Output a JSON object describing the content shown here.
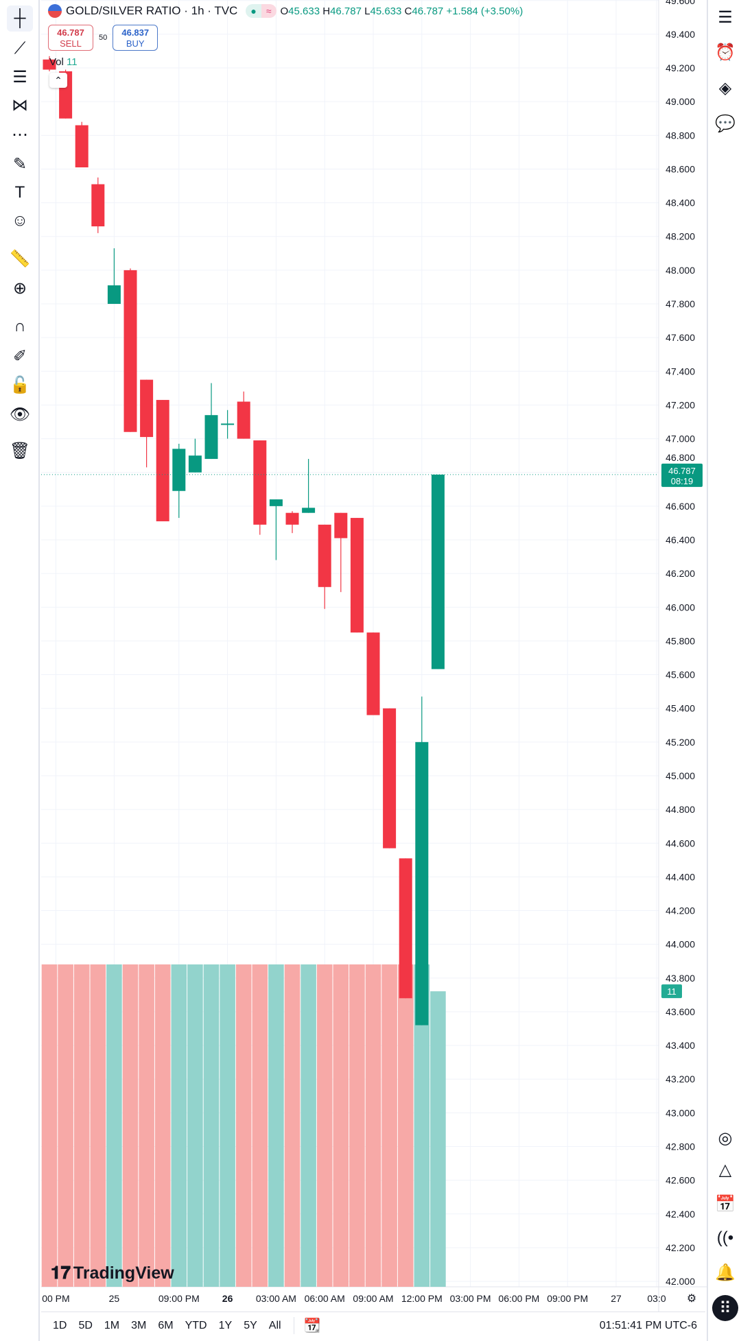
{
  "header": {
    "symbol": "GOLD/SILVER RATIO · 1h · TVC",
    "flag_icon": "us-flag-icon",
    "ohlc": [
      {
        "k": "O",
        "v": "45.633"
      },
      {
        "k": "H",
        "v": "46.787"
      },
      {
        "k": "L",
        "v": "45.633"
      },
      {
        "k": "C",
        "v": "46.787"
      }
    ],
    "change": "+1.584 (+3.50%)"
  },
  "trade": {
    "sell_price": "46.787",
    "sell_label": "SELL",
    "spread": "50",
    "buy_price": "46.837",
    "buy_label": "BUY"
  },
  "volume_legend": {
    "label": "Vol",
    "value": "11"
  },
  "colors": {
    "up": "#089981",
    "down": "#f23645",
    "vol_up": "#92d3cc",
    "vol_down": "#f7a9a7"
  },
  "price_axis": [
    "49.600",
    "49.400",
    "49.200",
    "49.000",
    "48.800",
    "48.600",
    "48.400",
    "48.200",
    "48.000",
    "47.800",
    "47.600",
    "47.400",
    "47.200",
    "47.000",
    "46.800",
    "46.600",
    "46.400",
    "46.200",
    "46.000",
    "45.800",
    "45.600",
    "45.400",
    "45.200",
    "45.000",
    "44.800",
    "44.600",
    "44.400",
    "44.200",
    "44.000",
    "43.800",
    "43.600",
    "43.400",
    "43.200",
    "43.000",
    "42.800",
    "42.600",
    "42.400",
    "42.200",
    "42.000"
  ],
  "last_price_tag": {
    "price": "46.787",
    "countdown": "08:19"
  },
  "volume_tag": "11",
  "time_axis": [
    {
      "label": "00 PM",
      "bold": false,
      "i": 0.4
    },
    {
      "label": "25",
      "bold": false,
      "i": 4
    },
    {
      "label": "09:00 PM",
      "bold": false,
      "i": 8
    },
    {
      "label": "26",
      "bold": true,
      "i": 11
    },
    {
      "label": "03:00 AM",
      "bold": false,
      "i": 14
    },
    {
      "label": "06:00 AM",
      "bold": false,
      "i": 17
    },
    {
      "label": "09:00 AM",
      "bold": false,
      "i": 20
    },
    {
      "label": "12:00 PM",
      "bold": false,
      "i": 23
    },
    {
      "label": "03:00 PM",
      "bold": false,
      "i": 26
    },
    {
      "label": "06:00 PM",
      "bold": false,
      "i": 29
    },
    {
      "label": "09:00 PM",
      "bold": false,
      "i": 32
    },
    {
      "label": "27",
      "bold": false,
      "i": 35
    },
    {
      "label": "03:0",
      "bold": false,
      "i": 37.5
    }
  ],
  "chart_data": {
    "type": "candlestick",
    "ylim": [
      42.0,
      49.6
    ],
    "candles": [
      {
        "o": 49.25,
        "h": 49.27,
        "l": 49.18,
        "c": 49.19,
        "v": 12
      },
      {
        "o": 49.18,
        "h": 49.19,
        "l": 48.9,
        "c": 48.9,
        "v": 12
      },
      {
        "o": 48.86,
        "h": 48.88,
        "l": 48.61,
        "c": 48.61,
        "v": 12
      },
      {
        "o": 48.51,
        "h": 48.55,
        "l": 48.22,
        "c": 48.26,
        "v": 12
      },
      {
        "o": 47.8,
        "h": 48.13,
        "l": 47.8,
        "c": 47.91,
        "v": 12
      },
      {
        "o": 48.0,
        "h": 48.01,
        "l": 47.04,
        "c": 47.04,
        "v": 12
      },
      {
        "o": 47.35,
        "h": 47.35,
        "l": 46.83,
        "c": 47.01,
        "v": 12
      },
      {
        "o": 47.23,
        "h": 47.23,
        "l": 46.51,
        "c": 46.51,
        "v": 12
      },
      {
        "o": 46.69,
        "h": 46.97,
        "l": 46.53,
        "c": 46.94,
        "v": 12
      },
      {
        "o": 46.8,
        "h": 47.0,
        "l": 46.8,
        "c": 46.9,
        "v": 12
      },
      {
        "o": 46.88,
        "h": 47.33,
        "l": 46.88,
        "c": 47.14,
        "v": 12
      },
      {
        "o": 47.09,
        "h": 47.17,
        "l": 47.0,
        "c": 47.09,
        "v": 12
      },
      {
        "o": 47.22,
        "h": 47.28,
        "l": 47.0,
        "c": 47.0,
        "v": 12
      },
      {
        "o": 46.99,
        "h": 46.99,
        "l": 46.43,
        "c": 46.49,
        "v": 12
      },
      {
        "o": 46.6,
        "h": 46.64,
        "l": 46.28,
        "c": 46.64,
        "v": 12
      },
      {
        "o": 46.56,
        "h": 46.57,
        "l": 46.44,
        "c": 46.49,
        "v": 12
      },
      {
        "o": 46.56,
        "h": 46.88,
        "l": 46.56,
        "c": 46.59,
        "v": 12
      },
      {
        "o": 46.49,
        "h": 46.49,
        "l": 45.99,
        "c": 46.12,
        "v": 12
      },
      {
        "o": 46.56,
        "h": 46.56,
        "l": 46.09,
        "c": 46.41,
        "v": 12
      },
      {
        "o": 46.53,
        "h": 46.53,
        "l": 45.85,
        "c": 45.85,
        "v": 12
      },
      {
        "o": 45.85,
        "h": 45.85,
        "l": 45.36,
        "c": 45.36,
        "v": 12
      },
      {
        "o": 45.4,
        "h": 45.4,
        "l": 44.57,
        "c": 44.57,
        "v": 12
      },
      {
        "o": 44.51,
        "h": 44.51,
        "l": 43.68,
        "c": 43.68,
        "v": 12
      },
      {
        "o": 43.52,
        "h": 45.47,
        "l": 43.52,
        "c": 45.2,
        "v": 12
      },
      {
        "o": 45.633,
        "h": 46.787,
        "l": 45.633,
        "c": 46.787,
        "v": 11
      }
    ]
  },
  "logo": "TradingView",
  "bottom": {
    "ranges": [
      "1D",
      "5D",
      "1M",
      "3M",
      "6M",
      "YTD",
      "1Y",
      "5Y",
      "All"
    ],
    "goto_icon": "calendar-goto-icon",
    "time": "01:51:41 PM UTC-6"
  },
  "left_tools": [
    "crosshair-icon",
    "trend-line-icon",
    "fib-retracement-icon",
    "pattern-icon",
    "forecast-icon",
    "brush-icon",
    "text-icon",
    "emoji-icon",
    "ruler-icon",
    "zoom-in-icon",
    "magnet-icon",
    "lock-drawing-icon",
    "unlock-icon",
    "eye-icon",
    "trash-icon"
  ],
  "right_tools": [
    "watchlist-icon",
    "alert-clock-icon",
    "layers-icon",
    "chat-icon",
    "speedometer-icon",
    "triangle-layers-icon",
    "calendar-icon",
    "signal-icon",
    "bell-icon",
    "grid-menu-icon"
  ]
}
